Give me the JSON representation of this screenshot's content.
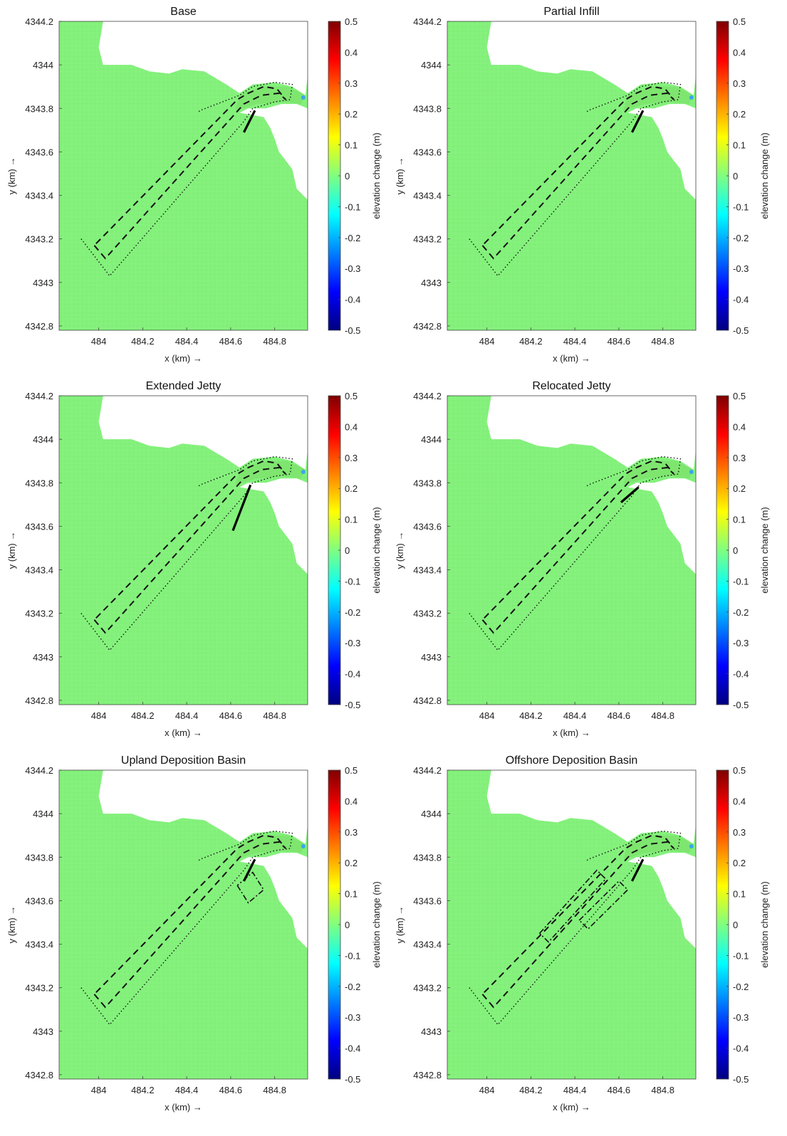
{
  "colorbar": {
    "label": "elevation change (m)",
    "ticks": [
      "0.5",
      "0.4",
      "0.3",
      "0.2",
      "0.1",
      "0",
      "-0.1",
      "-0.2",
      "-0.3",
      "-0.4",
      "-0.5"
    ],
    "colormap": "jet",
    "range": [
      -0.5,
      0.5
    ]
  },
  "colors": {
    "field_green": "#82f07a",
    "land": "#ffffff",
    "dashed_channel": "#111111",
    "jetty": "#000000"
  },
  "chart_data": [
    {
      "type": "heatmap",
      "title": "Base",
      "xlabel": "x (km) →",
      "ylabel": "y (km) →",
      "xticks": [
        "484",
        "484.2",
        "484.4",
        "484.6",
        "484.8"
      ],
      "yticks": [
        "4344.2",
        "4344",
        "4343.8",
        "4343.6",
        "4343.4",
        "4343.2",
        "4343",
        "4342.8"
      ],
      "xlim": [
        483.82,
        484.95
      ],
      "ylim": [
        4342.78,
        4344.2
      ],
      "colorbar_label": "elevation change (m)",
      "clim": [
        -0.5,
        0.5
      ],
      "dominant_value": 0,
      "jetty": [
        [
          484.66,
          4343.69
        ],
        [
          484.71,
          4343.79
        ]
      ],
      "extra": []
    },
    {
      "type": "heatmap",
      "title": "Partial Infill",
      "xlabel": "x (km) →",
      "ylabel": "y (km) →",
      "xticks": [
        "484",
        "484.2",
        "484.4",
        "484.6",
        "484.8"
      ],
      "yticks": [
        "4344.2",
        "4344",
        "4343.8",
        "4343.6",
        "4343.4",
        "4343.2",
        "4343",
        "4342.8"
      ],
      "xlim": [
        483.82,
        484.95
      ],
      "ylim": [
        4342.78,
        4344.2
      ],
      "colorbar_label": "elevation change (m)",
      "clim": [
        -0.5,
        0.5
      ],
      "dominant_value": 0,
      "jetty": [
        [
          484.66,
          4343.69
        ],
        [
          484.71,
          4343.79
        ]
      ],
      "extra": []
    },
    {
      "type": "heatmap",
      "title": "Extended Jetty",
      "xlabel": "x (km) →",
      "ylabel": "y (km) →",
      "xticks": [
        "484",
        "484.2",
        "484.4",
        "484.6",
        "484.8"
      ],
      "yticks": [
        "4344.2",
        "4344",
        "4343.8",
        "4343.6",
        "4343.4",
        "4343.2",
        "4343",
        "4342.8"
      ],
      "xlim": [
        483.82,
        484.95
      ],
      "ylim": [
        4342.78,
        4344.2
      ],
      "colorbar_label": "elevation change (m)",
      "clim": [
        -0.5,
        0.5
      ],
      "dominant_value": 0,
      "jetty": [
        [
          484.61,
          4343.58
        ],
        [
          484.69,
          4343.79
        ]
      ],
      "extra": []
    },
    {
      "type": "heatmap",
      "title": "Relocated Jetty",
      "xlabel": "x (km) →",
      "ylabel": "y (km) →",
      "xticks": [
        "484",
        "484.2",
        "484.4",
        "484.6",
        "484.8"
      ],
      "yticks": [
        "4344.2",
        "4344",
        "4343.8",
        "4343.6",
        "4343.4",
        "4343.2",
        "4343",
        "4342.8"
      ],
      "xlim": [
        483.82,
        484.95
      ],
      "ylim": [
        4342.78,
        4344.2
      ],
      "colorbar_label": "elevation change (m)",
      "clim": [
        -0.5,
        0.5
      ],
      "dominant_value": 0,
      "jetty": [
        [
          484.61,
          4343.71
        ],
        [
          484.69,
          4343.78
        ]
      ],
      "extra": []
    },
    {
      "type": "heatmap",
      "title": "Upland Deposition Basin",
      "xlabel": "x (km) →",
      "ylabel": "y (km) →",
      "xticks": [
        "484",
        "484.2",
        "484.4",
        "484.6",
        "484.8"
      ],
      "yticks": [
        "4344.2",
        "4344",
        "4343.8",
        "4343.6",
        "4343.4",
        "4343.2",
        "4343",
        "4342.8"
      ],
      "xlim": [
        483.82,
        484.95
      ],
      "ylim": [
        4342.78,
        4344.2
      ],
      "colorbar_label": "elevation change (m)",
      "clim": [
        -0.5,
        0.5
      ],
      "dominant_value": 0,
      "jetty": [
        [
          484.66,
          4343.69
        ],
        [
          484.71,
          4343.79
        ]
      ],
      "extra": [
        [
          [
            484.63,
            4343.67
          ],
          [
            484.68,
            4343.59
          ],
          [
            484.75,
            4343.65
          ],
          [
            484.7,
            4343.73
          ],
          [
            484.63,
            4343.67
          ]
        ]
      ]
    },
    {
      "type": "heatmap",
      "title": "Offshore Deposition Basin",
      "xlabel": "x (km) →",
      "ylabel": "y (km) →",
      "xticks": [
        "484",
        "484.2",
        "484.4",
        "484.6",
        "484.8"
      ],
      "yticks": [
        "4344.2",
        "4344",
        "4343.8",
        "4343.6",
        "4343.4",
        "4343.2",
        "4343",
        "4342.8"
      ],
      "xlim": [
        483.82,
        484.95
      ],
      "ylim": [
        4342.78,
        4344.2
      ],
      "colorbar_label": "elevation change (m)",
      "clim": [
        -0.5,
        0.5
      ],
      "dominant_value": 0,
      "jetty": [
        [
          484.66,
          4343.69
        ],
        [
          484.71,
          4343.79
        ]
      ],
      "extra": [
        [
          [
            484.24,
            4343.45
          ],
          [
            484.5,
            4343.74
          ],
          [
            484.54,
            4343.7
          ],
          [
            484.28,
            4343.41
          ],
          [
            484.24,
            4343.45
          ]
        ],
        [
          [
            484.42,
            4343.51
          ],
          [
            484.6,
            4343.69
          ],
          [
            484.64,
            4343.65
          ],
          [
            484.46,
            4343.47
          ],
          [
            484.42,
            4343.51
          ]
        ]
      ]
    }
  ]
}
